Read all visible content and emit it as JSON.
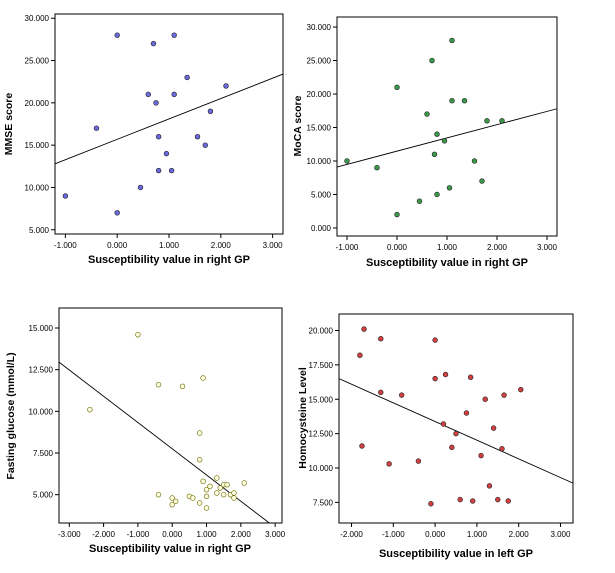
{
  "figure_title": "",
  "chart_data": [
    {
      "type": "scatter",
      "title": "",
      "xlabel": "Susceptibility value in right GP",
      "ylabel": "MMSE score",
      "xlim": [
        -1.2,
        3.2
      ],
      "ylim": [
        4.5,
        30.5
      ],
      "xticks": [
        -1,
        0,
        1,
        2,
        3
      ],
      "yticks": [
        5,
        10,
        15,
        20,
        25,
        30
      ],
      "xtick_labels": [
        "-1.000",
        "0.000",
        "1.000",
        "2.000",
        "3.000"
      ],
      "ytick_labels": [
        "5.000",
        "10.000",
        "15.000",
        "20.000",
        "25.000",
        "30.000"
      ],
      "marker_color": "#6a6adf",
      "marker_fill": true,
      "x": [
        -1.0,
        0.0,
        0.0,
        -0.4,
        0.45,
        0.6,
        0.7,
        0.75,
        0.8,
        0.8,
        0.95,
        1.05,
        1.1,
        1.1,
        1.35,
        1.55,
        1.7,
        1.8,
        2.1
      ],
      "y": [
        9,
        7,
        28,
        17,
        10,
        21,
        27,
        20,
        16,
        12,
        14,
        12,
        28,
        21,
        23,
        16,
        15,
        19,
        22
      ],
      "fit_line": {
        "x": [
          -1.2,
          3.2
        ],
        "y": [
          12.8,
          23.4
        ]
      }
    },
    {
      "type": "scatter",
      "title": "",
      "xlabel": "Susceptibility value in right GP",
      "ylabel": "MoCA score",
      "xlim": [
        -1.2,
        3.2
      ],
      "ylim": [
        -1.2,
        31.5
      ],
      "xticks": [
        -1,
        0,
        1,
        2,
        3
      ],
      "yticks": [
        0,
        5,
        10,
        15,
        20,
        25,
        30
      ],
      "xtick_labels": [
        "-1.000",
        "0.000",
        "1.000",
        "2.000",
        "3.000"
      ],
      "ytick_labels": [
        "0.000",
        "5.000",
        "10.000",
        "15.000",
        "20.000",
        "25.000",
        "30.000"
      ],
      "marker_color": "#3a9a4a",
      "marker_fill": true,
      "x": [
        -1.0,
        -0.4,
        0.0,
        0.0,
        0.45,
        0.6,
        0.7,
        0.75,
        0.8,
        0.8,
        0.95,
        1.05,
        1.1,
        1.1,
        1.35,
        1.55,
        1.7,
        1.8,
        2.1
      ],
      "y": [
        10,
        9,
        2,
        21,
        4,
        17,
        25,
        11,
        14,
        5,
        13,
        6,
        28,
        19,
        19,
        10,
        7,
        16,
        16
      ],
      "fit_line": {
        "x": [
          -1.2,
          3.2
        ],
        "y": [
          9.1,
          17.8
        ]
      }
    },
    {
      "type": "scatter",
      "title": "",
      "xlabel": "Susceptibility value in right GP",
      "ylabel": "Fasting glucose (mmol/L)",
      "xlim": [
        -3.3,
        3.2
      ],
      "ylim": [
        3.3,
        16.2
      ],
      "xticks": [
        -3,
        -2,
        -1,
        0,
        1,
        2,
        3
      ],
      "yticks": [
        5,
        7.5,
        10,
        12.5,
        15
      ],
      "xtick_labels": [
        "-3.000",
        "-2.000",
        "-1.000",
        "0.000",
        "1.000",
        "2.000",
        "3.000"
      ],
      "ytick_labels": [
        "5.000",
        "7.500",
        "10.000",
        "12.500",
        "15.000"
      ],
      "marker_color": "#c8c800",
      "marker_fill": false,
      "x": [
        -2.4,
        -1.0,
        -0.4,
        0.3,
        0.9,
        -0.4,
        0.0,
        0.0,
        0.1,
        0.5,
        0.6,
        0.8,
        0.8,
        0.8,
        0.9,
        1.0,
        1.0,
        1.0,
        1.1,
        1.3,
        1.3,
        1.4,
        1.5,
        1.5,
        1.6,
        1.7,
        1.8,
        1.8,
        2.1
      ],
      "y": [
        10.1,
        14.6,
        11.6,
        11.5,
        12.0,
        5.0,
        4.8,
        4.4,
        4.6,
        4.9,
        4.8,
        4.5,
        7.1,
        8.7,
        5.8,
        5.3,
        4.9,
        4.2,
        5.5,
        6.0,
        5.1,
        5.4,
        5.6,
        5.0,
        5.6,
        5.0,
        4.8,
        5.1,
        5.7
      ],
      "fit_line": {
        "x": [
          -3.3,
          2.83
        ],
        "y": [
          12.95,
          3.3
        ]
      }
    },
    {
      "type": "scatter",
      "title": "",
      "xlabel": "Susceptibility value in left GP",
      "ylabel": "Homocysteine Level",
      "xlim": [
        -2.3,
        3.3
      ],
      "ylim": [
        6.0,
        21.2
      ],
      "xticks": [
        -2,
        -1,
        0,
        1,
        2,
        3
      ],
      "yticks": [
        7.5,
        10,
        12.5,
        15,
        17.5,
        20
      ],
      "xtick_labels": [
        "-2.000",
        "-1.000",
        "0.000",
        "1.000",
        "2.000",
        "3.000"
      ],
      "ytick_labels": [
        "7.500",
        "10.000",
        "12.500",
        "15.000",
        "17.500",
        "20.000"
      ],
      "marker_color": "#d04040",
      "marker_fill": true,
      "x": [
        -1.8,
        -1.7,
        -1.75,
        -1.3,
        -1.3,
        -1.1,
        -0.8,
        -0.4,
        -0.1,
        0.0,
        0.0,
        0.2,
        0.25,
        0.4,
        0.5,
        0.6,
        0.75,
        0.85,
        0.9,
        1.1,
        1.2,
        1.3,
        1.4,
        1.5,
        1.6,
        1.65,
        1.75,
        2.05
      ],
      "y": [
        18.2,
        20.1,
        11.6,
        19.4,
        15.5,
        10.3,
        15.3,
        10.5,
        7.4,
        16.5,
        19.3,
        13.2,
        16.8,
        11.5,
        12.5,
        7.7,
        14.0,
        16.6,
        7.6,
        10.9,
        15.0,
        8.7,
        12.9,
        7.7,
        11.4,
        15.3,
        7.6,
        15.7
      ],
      "fit_line": {
        "x": [
          -2.3,
          3.3
        ],
        "y": [
          16.5,
          8.9
        ]
      }
    }
  ]
}
